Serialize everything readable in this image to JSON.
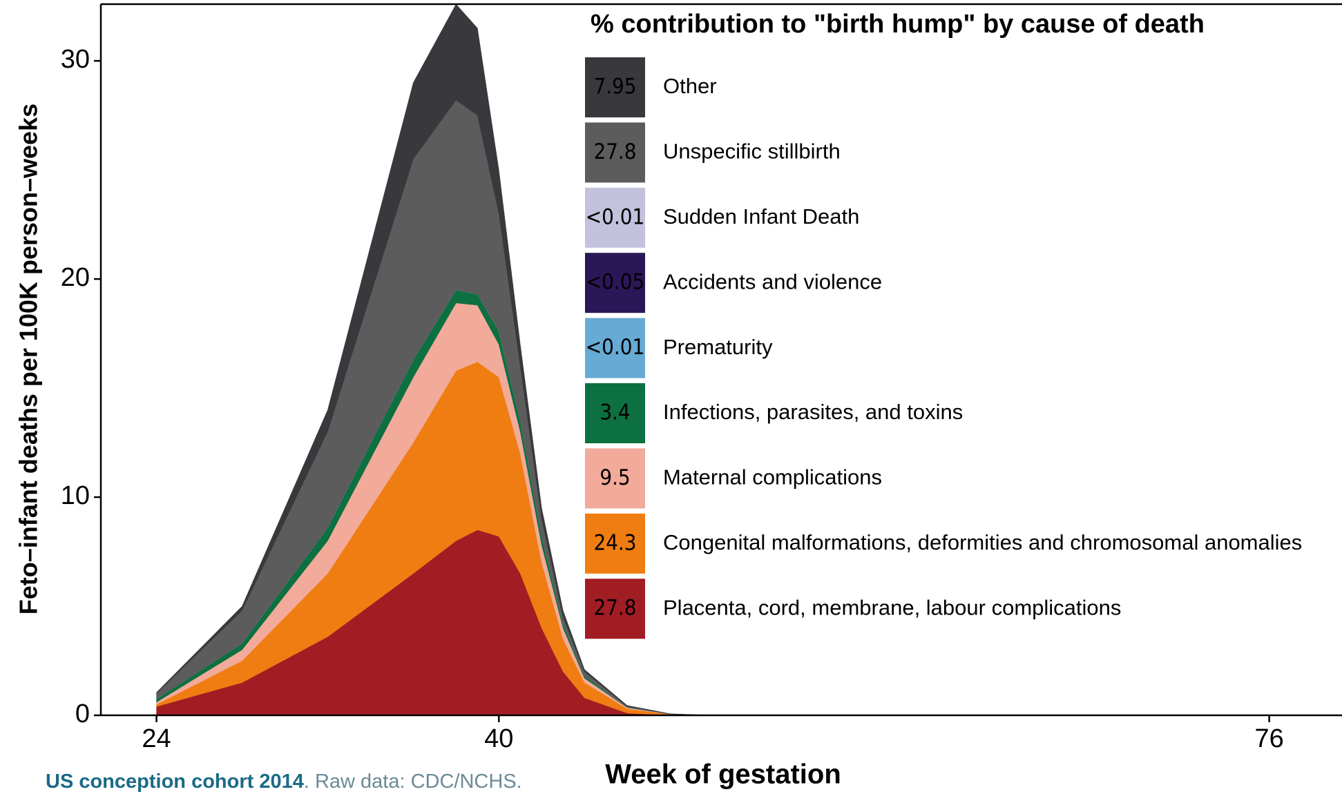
{
  "chart_data": {
    "type": "stacked-area",
    "legend_title": "% contribution to \"birth hump\" by cause of death",
    "xlabel": "Week of gestation",
    "ylabel": "Feto–infant deaths per 100K person–weeks",
    "caption_bold": "US conception cohort 2014",
    "caption": ". Raw data: CDC/NCHS.",
    "x": [
      24,
      28,
      32,
      36,
      38,
      39,
      40,
      41,
      42,
      43,
      44,
      46,
      48,
      50
    ],
    "xlim": [
      21.4,
      79.4
    ],
    "xticks": [
      24,
      40,
      76
    ],
    "ylim": [
      0,
      32.6
    ],
    "yticks": [
      0,
      10,
      20,
      30
    ],
    "series": [
      {
        "name": "Placenta, cord, membrane, labour complications",
        "color": "#a11d24",
        "contribution": "27.8",
        "values": [
          0.4,
          1.5,
          3.6,
          6.5,
          8.0,
          8.5,
          8.2,
          6.5,
          4.0,
          2.0,
          0.8,
          0.1,
          0,
          0
        ]
      },
      {
        "name": "Congenital malformations, deformities and chromosomal anomalies",
        "color": "#f07d12",
        "contribution": "24.3",
        "values": [
          0.1,
          1.0,
          2.9,
          6.0,
          7.8,
          7.7,
          7.3,
          5.5,
          3.0,
          1.5,
          0.7,
          0.2,
          0.05,
          0
        ]
      },
      {
        "name": "Maternal complications",
        "color": "#f2aa9a",
        "contribution": "9.5",
        "values": [
          0.1,
          0.5,
          1.5,
          3.0,
          3.1,
          2.6,
          1.5,
          1.0,
          0.8,
          0.5,
          0.2,
          0.05,
          0,
          0
        ]
      },
      {
        "name": "Infections, parasites, and toxins",
        "color": "#0d7040",
        "contribution": "3.4",
        "values": [
          0.15,
          0.3,
          0.6,
          0.8,
          0.6,
          0.5,
          0.6,
          0.5,
          0.4,
          0.2,
          0.1,
          0.02,
          0,
          0
        ]
      },
      {
        "name": "Prematurity",
        "color": "#67aad4",
        "contribution": "<0.01",
        "values": [
          0,
          0,
          0,
          0,
          0,
          0,
          0,
          0,
          0,
          0,
          0,
          0,
          0,
          0
        ]
      },
      {
        "name": "Accidents and violence",
        "color": "#2a1758",
        "contribution": "<0.05",
        "values": [
          0,
          0,
          0,
          0,
          0,
          0,
          0,
          0,
          0,
          0,
          0,
          0,
          0,
          0
        ]
      },
      {
        "name": "Sudden Infant Death",
        "color": "#c2c2dc",
        "contribution": "<0.01",
        "values": [
          0,
          0,
          0,
          0,
          0,
          0,
          0,
          0,
          0,
          0,
          0,
          0,
          0,
          0
        ]
      },
      {
        "name": "Unspecific stillbirth",
        "color": "#5c5c5c",
        "contribution": "27.8",
        "values": [
          0.25,
          1.5,
          4.4,
          9.2,
          8.7,
          8.2,
          5.4,
          2.5,
          0.8,
          0.3,
          0.2,
          0.03,
          0.01,
          0
        ]
      },
      {
        "name": "Other",
        "color": "#39383c",
        "contribution": "7.95",
        "values": [
          0.05,
          0.2,
          1.0,
          3.5,
          4.4,
          4.0,
          2.0,
          1.0,
          0.5,
          0.3,
          0.1,
          0.05,
          0.01,
          0
        ]
      }
    ]
  }
}
